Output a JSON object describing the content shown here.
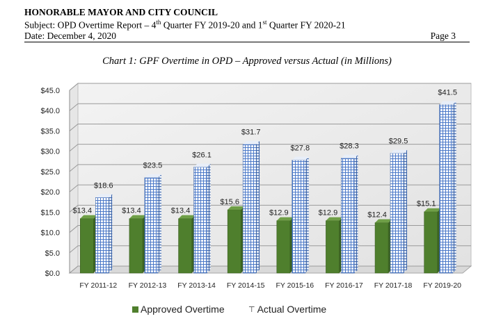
{
  "header": {
    "title": "HONORABLE MAYOR AND CITY COUNCIL",
    "subject_prefix": "Subject: OPD Overtime Report – 4",
    "sup1": "th",
    "subject_mid": " Quarter FY 2019-20 and 1",
    "sup2": "st",
    "subject_suffix": " Quarter FY 2020-21",
    "date": "Date: December 4, 2020",
    "page": "Page 3"
  },
  "chart_data": {
    "type": "bar",
    "title": "Chart 1: GPF Overtime in OPD – Approved versus Actual (in Millions)",
    "categories": [
      "FY 2011-12",
      "FY 2012-13",
      "FY 2013-14",
      "FY 2014-15",
      "FY 2015-16",
      "FY 2016-17",
      "FY 2017-18",
      "FY 2019-20"
    ],
    "series": [
      {
        "name": "Approved Overtime",
        "values": [
          13.4,
          13.4,
          13.4,
          15.6,
          12.9,
          12.9,
          12.4,
          15.1
        ],
        "labels": [
          "$13.4",
          "$13.4",
          "$13.4",
          "$15.6",
          "$12.9",
          "$12.9",
          "$12.4",
          "$15.1"
        ],
        "color": "#4f7f2d"
      },
      {
        "name": "Actual Overtime",
        "values": [
          18.6,
          23.5,
          26.1,
          31.7,
          27.8,
          28.3,
          29.5,
          41.5
        ],
        "labels": [
          "$18.6",
          "$23.5",
          "$26.1",
          "$31.7",
          "$27.8",
          "$28.3",
          "$29.5",
          "$41.5"
        ],
        "color": "#4a78c8"
      }
    ],
    "yticks": [
      0,
      5,
      10,
      15,
      20,
      25,
      30,
      35,
      40,
      45
    ],
    "ytick_labels": [
      "$0.0",
      "$5.0",
      "$10.0",
      "$15.0",
      "$20.0",
      "$25.0",
      "$30.0",
      "$35.0",
      "$40.0",
      "$45.0"
    ],
    "ylim": [
      0,
      45
    ],
    "grid": true,
    "legend": "bottom"
  }
}
